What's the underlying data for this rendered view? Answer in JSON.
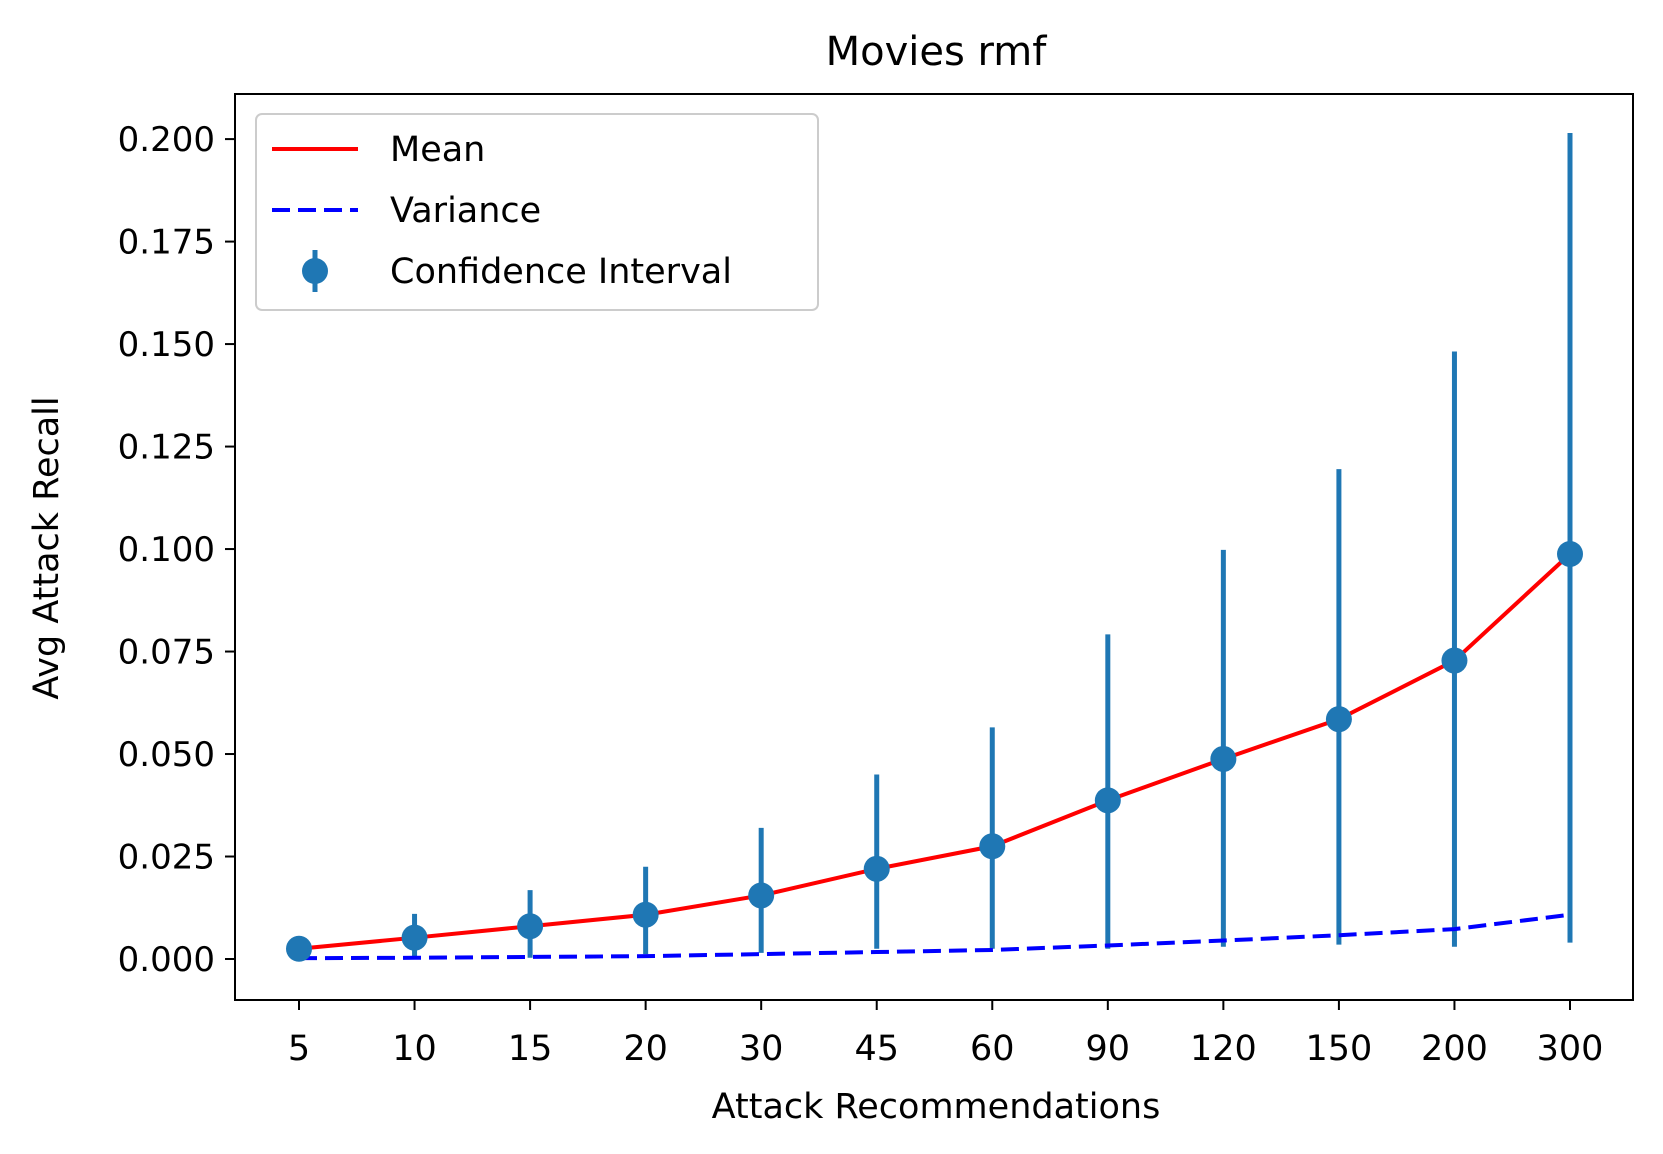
{
  "chart_data": {
    "type": "line",
    "title": "Movies rmf",
    "xlabel": "Attack Recommendations",
    "ylabel": "Avg Attack Recall",
    "categories": [
      "5",
      "10",
      "15",
      "20",
      "30",
      "45",
      "60",
      "90",
      "120",
      "150",
      "200",
      "300"
    ],
    "ylim": [
      -0.01,
      0.211
    ],
    "yticks": [
      "0.000",
      "0.025",
      "0.050",
      "0.075",
      "0.100",
      "0.125",
      "0.150",
      "0.175",
      "0.200"
    ],
    "grid": false,
    "legend_position": "upper-left",
    "series": [
      {
        "name": "Mean",
        "style": "solid",
        "color": "#ff0000",
        "values": [
          0.0025,
          0.0052,
          0.008,
          0.0108,
          0.0155,
          0.022,
          0.0275,
          0.0387,
          0.0488,
          0.0585,
          0.0728,
          0.0988
        ]
      },
      {
        "name": "Variance",
        "style": "dashed",
        "color": "#0000ff",
        "values": [
          0.0002,
          0.0003,
          0.0005,
          0.0007,
          0.0012,
          0.0017,
          0.0022,
          0.0033,
          0.0045,
          0.0058,
          0.0073,
          0.0108
        ]
      },
      {
        "name": "Confidence Interval",
        "style": "errorbar",
        "color": "#1f77b4",
        "values": [
          0.0025,
          0.0052,
          0.008,
          0.0108,
          0.0155,
          0.022,
          0.0275,
          0.0387,
          0.0488,
          0.0585,
          0.0728,
          0.0988
        ],
        "lower": [
          0.0025,
          0.0002,
          0.0003,
          0.0012,
          0.0015,
          0.0025,
          0.0025,
          0.0025,
          0.003,
          0.0035,
          0.003,
          0.004
        ],
        "upper": [
          0.0025,
          0.011,
          0.0168,
          0.0225,
          0.032,
          0.045,
          0.0565,
          0.0792,
          0.0998,
          0.1195,
          0.1482,
          0.2015
        ]
      }
    ]
  }
}
